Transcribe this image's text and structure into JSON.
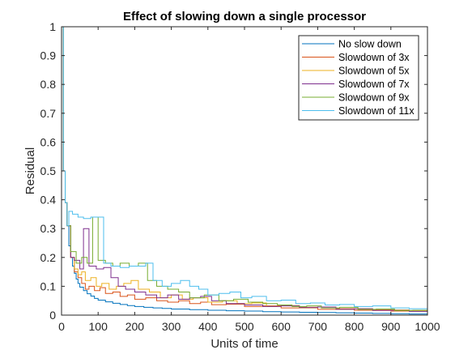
{
  "chart_data": {
    "type": "line",
    "title": "Effect of slowing down a single processor",
    "xlabel": "Units of time",
    "ylabel": "Residual",
    "xlim": [
      0,
      1000
    ],
    "ylim": [
      0,
      1
    ],
    "xticks": [
      0,
      100,
      200,
      300,
      400,
      500,
      600,
      700,
      800,
      900,
      1000
    ],
    "yticks": [
      0,
      0.1,
      0.2,
      0.3,
      0.4,
      0.5,
      0.6,
      0.7,
      0.8,
      0.9,
      1
    ],
    "xtick_labels": [
      "0",
      "100",
      "200",
      "300",
      "400",
      "500",
      "600",
      "700",
      "800",
      "900",
      "1000"
    ],
    "ytick_labels": [
      "0",
      "0.1",
      "0.2",
      "0.3",
      "0.4",
      "0.5",
      "0.6",
      "0.7",
      "0.8",
      "0.9",
      "1"
    ],
    "grid": false,
    "legend_position": "top-right",
    "series": [
      {
        "name": "No slow down",
        "color": "#0072BD",
        "points": [
          [
            0,
            1
          ],
          [
            5,
            0.5
          ],
          [
            10,
            0.39
          ],
          [
            15,
            0.31
          ],
          [
            20,
            0.24
          ],
          [
            25,
            0.2
          ],
          [
            30,
            0.17
          ],
          [
            35,
            0.145
          ],
          [
            40,
            0.125
          ],
          [
            45,
            0.11
          ],
          [
            50,
            0.097
          ],
          [
            60,
            0.085
          ],
          [
            70,
            0.074
          ],
          [
            80,
            0.066
          ],
          [
            90,
            0.058
          ],
          [
            100,
            0.052
          ],
          [
            120,
            0.046
          ],
          [
            140,
            0.041
          ],
          [
            160,
            0.037
          ],
          [
            180,
            0.033
          ],
          [
            200,
            0.03
          ],
          [
            225,
            0.027
          ],
          [
            250,
            0.025
          ],
          [
            275,
            0.023
          ],
          [
            300,
            0.021
          ],
          [
            350,
            0.019
          ],
          [
            400,
            0.017
          ],
          [
            450,
            0.015
          ],
          [
            500,
            0.014
          ],
          [
            550,
            0.012
          ],
          [
            600,
            0.011
          ],
          [
            650,
            0.01
          ],
          [
            700,
            0.009
          ],
          [
            750,
            0.008
          ],
          [
            800,
            0.007
          ],
          [
            850,
            0.006
          ],
          [
            900,
            0.005
          ],
          [
            950,
            0.004
          ],
          [
            1000,
            0.004
          ]
        ]
      },
      {
        "name": "Slowdown of 3x",
        "color": "#D95319",
        "points": [
          [
            0,
            1
          ],
          [
            5,
            0.5
          ],
          [
            10,
            0.39
          ],
          [
            15,
            0.31
          ],
          [
            25,
            0.2
          ],
          [
            35,
            0.15
          ],
          [
            45,
            0.13
          ],
          [
            55,
            0.11
          ],
          [
            65,
            0.09
          ],
          [
            75,
            0.1
          ],
          [
            90,
            0.085
          ],
          [
            105,
            0.095
          ],
          [
            120,
            0.075
          ],
          [
            140,
            0.08
          ],
          [
            160,
            0.065
          ],
          [
            180,
            0.07
          ],
          [
            200,
            0.055
          ],
          [
            230,
            0.06
          ],
          [
            260,
            0.05
          ],
          [
            290,
            0.045
          ],
          [
            320,
            0.05
          ],
          [
            350,
            0.04
          ],
          [
            380,
            0.045
          ],
          [
            410,
            0.036
          ],
          [
            450,
            0.038
          ],
          [
            500,
            0.03
          ],
          [
            550,
            0.032
          ],
          [
            600,
            0.025
          ],
          [
            650,
            0.027
          ],
          [
            700,
            0.02
          ],
          [
            750,
            0.022
          ],
          [
            800,
            0.017
          ],
          [
            850,
            0.018
          ],
          [
            900,
            0.014
          ],
          [
            950,
            0.015
          ],
          [
            1000,
            0.015
          ]
        ]
      },
      {
        "name": "Slowdown of 5x",
        "color": "#EDB120",
        "points": [
          [
            0,
            1
          ],
          [
            5,
            0.5
          ],
          [
            10,
            0.39
          ],
          [
            15,
            0.31
          ],
          [
            25,
            0.2
          ],
          [
            35,
            0.16
          ],
          [
            45,
            0.14
          ],
          [
            55,
            0.15
          ],
          [
            65,
            0.12
          ],
          [
            80,
            0.13
          ],
          [
            95,
            0.1
          ],
          [
            110,
            0.11
          ],
          [
            130,
            0.09
          ],
          [
            150,
            0.1
          ],
          [
            170,
            0.11
          ],
          [
            190,
            0.12
          ],
          [
            210,
            0.09
          ],
          [
            240,
            0.08
          ],
          [
            270,
            0.06
          ],
          [
            300,
            0.07
          ],
          [
            330,
            0.055
          ],
          [
            360,
            0.06
          ],
          [
            400,
            0.045
          ],
          [
            440,
            0.05
          ],
          [
            480,
            0.04
          ],
          [
            520,
            0.042
          ],
          [
            560,
            0.03
          ],
          [
            600,
            0.033
          ],
          [
            650,
            0.025
          ],
          [
            700,
            0.028
          ],
          [
            750,
            0.02
          ],
          [
            800,
            0.022
          ],
          [
            850,
            0.016
          ],
          [
            900,
            0.018
          ],
          [
            950,
            0.014
          ],
          [
            1000,
            0.014
          ]
        ]
      },
      {
        "name": "Slowdown of 7x",
        "color": "#7E2F8E",
        "points": [
          [
            0,
            1
          ],
          [
            5,
            0.5
          ],
          [
            10,
            0.39
          ],
          [
            15,
            0.31
          ],
          [
            25,
            0.2
          ],
          [
            35,
            0.19
          ],
          [
            50,
            0.16
          ],
          [
            60,
            0.3
          ],
          [
            75,
            0.17
          ],
          [
            95,
            0.16
          ],
          [
            115,
            0.165
          ],
          [
            135,
            0.13
          ],
          [
            155,
            0.1
          ],
          [
            175,
            0.09
          ],
          [
            200,
            0.08
          ],
          [
            230,
            0.07
          ],
          [
            260,
            0.06
          ],
          [
            290,
            0.07
          ],
          [
            320,
            0.055
          ],
          [
            350,
            0.06
          ],
          [
            380,
            0.065
          ],
          [
            410,
            0.05
          ],
          [
            450,
            0.04
          ],
          [
            500,
            0.035
          ],
          [
            550,
            0.03
          ],
          [
            600,
            0.032
          ],
          [
            650,
            0.026
          ],
          [
            700,
            0.028
          ],
          [
            750,
            0.02
          ],
          [
            800,
            0.022
          ],
          [
            850,
            0.016
          ],
          [
            900,
            0.017
          ],
          [
            950,
            0.013
          ],
          [
            1000,
            0.013
          ]
        ]
      },
      {
        "name": "Slowdown of 9x",
        "color": "#77AC30",
        "points": [
          [
            0,
            1
          ],
          [
            5,
            0.5
          ],
          [
            10,
            0.39
          ],
          [
            15,
            0.31
          ],
          [
            25,
            0.22
          ],
          [
            40,
            0.18
          ],
          [
            55,
            0.2
          ],
          [
            70,
            0.18
          ],
          [
            85,
            0.34
          ],
          [
            100,
            0.19
          ],
          [
            120,
            0.18
          ],
          [
            140,
            0.17
          ],
          [
            160,
            0.18
          ],
          [
            185,
            0.17
          ],
          [
            210,
            0.18
          ],
          [
            235,
            0.12
          ],
          [
            260,
            0.1
          ],
          [
            290,
            0.09
          ],
          [
            320,
            0.08
          ],
          [
            350,
            0.06
          ],
          [
            390,
            0.07
          ],
          [
            430,
            0.05
          ],
          [
            470,
            0.055
          ],
          [
            510,
            0.045
          ],
          [
            550,
            0.04
          ],
          [
            590,
            0.035
          ],
          [
            630,
            0.03
          ],
          [
            670,
            0.032
          ],
          [
            710,
            0.025
          ],
          [
            760,
            0.027
          ],
          [
            810,
            0.02
          ],
          [
            860,
            0.021
          ],
          [
            910,
            0.016
          ],
          [
            960,
            0.017
          ],
          [
            1000,
            0.017
          ]
        ]
      },
      {
        "name": "Slowdown of 11x",
        "color": "#4DBEEE",
        "points": [
          [
            0,
            1
          ],
          [
            5,
            0.5
          ],
          [
            10,
            0.39
          ],
          [
            15,
            0.31
          ],
          [
            20,
            0.36
          ],
          [
            30,
            0.35
          ],
          [
            45,
            0.34
          ],
          [
            60,
            0.335
          ],
          [
            80,
            0.34
          ],
          [
            100,
            0.34
          ],
          [
            115,
            0.18
          ],
          [
            135,
            0.17
          ],
          [
            160,
            0.165
          ],
          [
            185,
            0.17
          ],
          [
            205,
            0.17
          ],
          [
            230,
            0.18
          ],
          [
            250,
            0.12
          ],
          [
            275,
            0.1
          ],
          [
            300,
            0.11
          ],
          [
            325,
            0.12
          ],
          [
            350,
            0.1
          ],
          [
            375,
            0.09
          ],
          [
            400,
            0.07
          ],
          [
            430,
            0.075
          ],
          [
            460,
            0.08
          ],
          [
            490,
            0.06
          ],
          [
            520,
            0.065
          ],
          [
            560,
            0.05
          ],
          [
            600,
            0.052
          ],
          [
            640,
            0.04
          ],
          [
            680,
            0.042
          ],
          [
            720,
            0.035
          ],
          [
            760,
            0.037
          ],
          [
            800,
            0.03
          ],
          [
            850,
            0.032
          ],
          [
            900,
            0.025
          ],
          [
            950,
            0.022
          ],
          [
            1000,
            0.022
          ]
        ]
      }
    ]
  }
}
